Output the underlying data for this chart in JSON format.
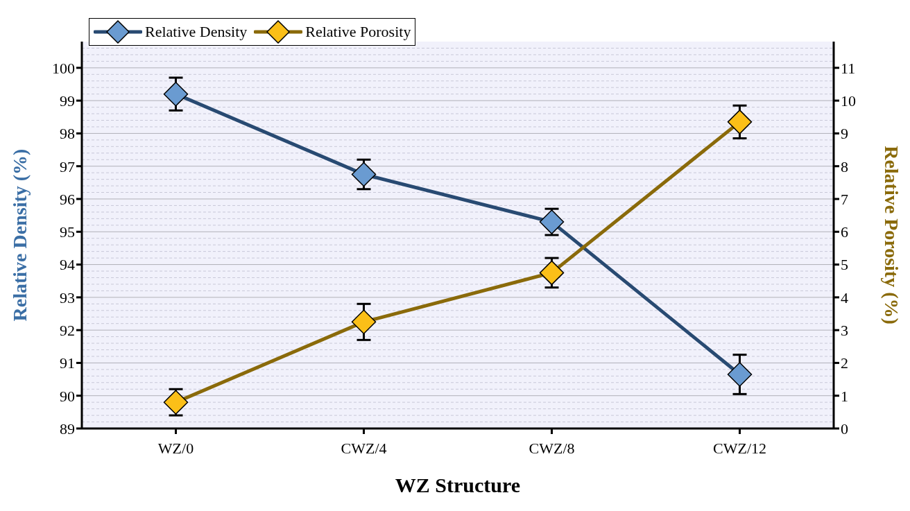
{
  "chart_data": {
    "type": "line",
    "xlabel": "WZ Structure",
    "ylabel": "Relative Density (%)",
    "y2label": "Relative Porosity (%)",
    "categories": [
      "WZ/0",
      "CWZ/4",
      "CWZ/8",
      "CWZ/12"
    ],
    "series": [
      {
        "name": "Relative Density",
        "color": "#284a72",
        "colors": [
          "#6a9bd1",
          "#6a9bd1",
          "#6a9bd1",
          "#6a9bd1"
        ],
        "values": [
          99.2,
          96.75,
          95.3,
          90.65
        ],
        "errors": [
          0.5,
          0.45,
          0.4,
          0.6
        ]
      },
      {
        "name": "Relative Porosity",
        "color": "#8a6a0a",
        "colors": [
          "#fbbf18",
          "#fbbf18",
          "#fbbf18",
          "#fbbf18"
        ],
        "values": [
          0.8,
          3.25,
          4.75,
          9.35
        ],
        "errors": [
          0.4,
          0.55,
          0.45,
          0.5
        ],
        "axis": "y2"
      }
    ],
    "ylim": [
      89,
      100.8
    ],
    "yticks": [
      89,
      90,
      91,
      92,
      93,
      94,
      95,
      96,
      97,
      98,
      99,
      100
    ],
    "y2lim": [
      0,
      11.8
    ],
    "y2ticks": [
      0,
      1,
      2,
      3,
      4,
      5,
      6,
      7,
      8,
      9,
      10,
      11
    ],
    "grid": "y",
    "legend": "top left",
    "marker": "diamond",
    "line_style": "solid"
  }
}
